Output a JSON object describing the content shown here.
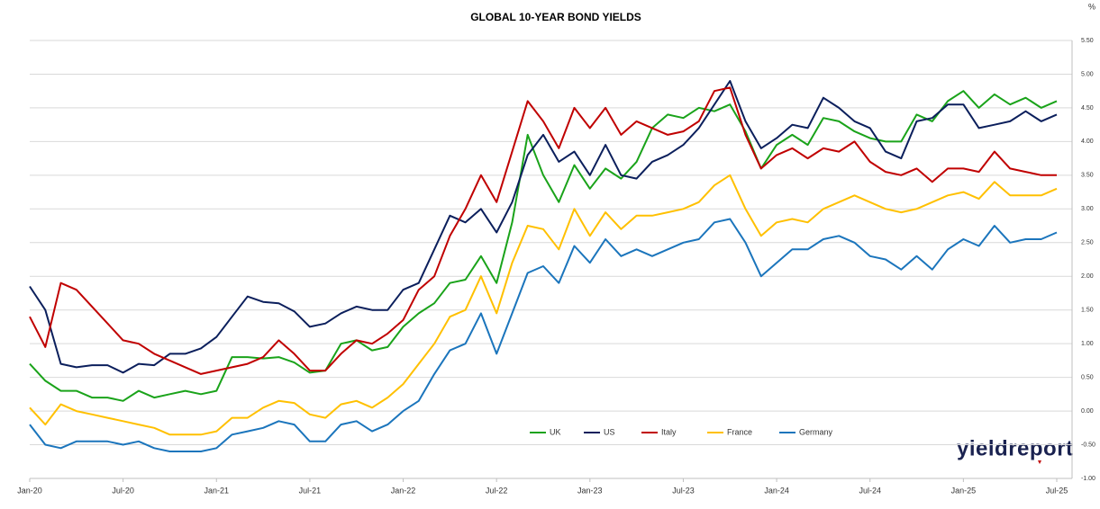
{
  "chart_data": {
    "type": "line",
    "title": "GLOBAL 10-YEAR BOND YIELDS",
    "y_unit": "%",
    "logo": "yieldreport",
    "categories": [
      "Jan-20",
      null,
      null,
      null,
      null,
      null,
      "Jul-20",
      null,
      null,
      null,
      null,
      null,
      "Jan-21",
      null,
      null,
      null,
      null,
      null,
      "Jul-21",
      null,
      null,
      null,
      null,
      null,
      "Jan-22",
      null,
      null,
      null,
      null,
      null,
      "Jul-22",
      null,
      null,
      null,
      null,
      null,
      "Jan-23",
      null,
      null,
      null,
      null,
      null,
      "Jul-23",
      null,
      null,
      null,
      null,
      null,
      "Jan-24",
      null,
      null,
      null,
      null,
      null,
      "Jul-24",
      null,
      null,
      null,
      null,
      null,
      "Jan-25",
      null,
      null,
      null,
      null,
      null,
      "Jul-25"
    ],
    "series": [
      {
        "name": "UK",
        "color": "#1aa31a",
        "values": [
          0.7,
          0.45,
          0.3,
          0.3,
          0.2,
          0.2,
          0.15,
          0.3,
          0.2,
          0.25,
          0.3,
          0.25,
          0.3,
          0.8,
          0.8,
          0.78,
          0.8,
          0.72,
          0.57,
          0.6,
          1.0,
          1.05,
          0.9,
          0.95,
          1.25,
          1.45,
          1.6,
          1.9,
          1.95,
          2.3,
          1.9,
          2.8,
          4.1,
          3.5,
          3.1,
          3.65,
          3.3,
          3.6,
          3.45,
          3.7,
          4.2,
          4.4,
          4.35,
          4.5,
          4.45,
          4.55,
          4.15,
          3.6,
          3.95,
          4.1,
          3.95,
          4.35,
          4.3,
          4.15,
          4.05,
          4.0,
          4.0,
          4.4,
          4.3,
          4.6,
          4.75,
          4.5,
          4.7,
          4.55,
          4.65,
          4.5,
          4.6
        ]
      },
      {
        "name": "US",
        "color": "#0b1f5c",
        "values": [
          1.85,
          1.5,
          0.7,
          0.65,
          0.68,
          0.68,
          0.57,
          0.7,
          0.68,
          0.85,
          0.85,
          0.93,
          1.1,
          1.4,
          1.7,
          1.62,
          1.6,
          1.48,
          1.25,
          1.3,
          1.45,
          1.55,
          1.5,
          1.5,
          1.8,
          1.9,
          2.4,
          2.9,
          2.8,
          3.0,
          2.65,
          3.1,
          3.8,
          4.1,
          3.7,
          3.85,
          3.5,
          3.95,
          3.5,
          3.45,
          3.7,
          3.8,
          3.95,
          4.2,
          4.55,
          4.9,
          4.3,
          3.9,
          4.05,
          4.25,
          4.2,
          4.65,
          4.5,
          4.3,
          4.2,
          3.85,
          3.75,
          4.3,
          4.35,
          4.55,
          4.55,
          4.2,
          4.25,
          4.3,
          4.45,
          4.3,
          4.4
        ]
      },
      {
        "name": "Italy",
        "color": "#c00000",
        "values": [
          1.4,
          0.95,
          1.9,
          1.8,
          1.55,
          1.3,
          1.05,
          1.0,
          0.85,
          0.75,
          0.65,
          0.55,
          0.6,
          0.65,
          0.7,
          0.8,
          1.05,
          0.85,
          0.6,
          0.6,
          0.85,
          1.05,
          1.0,
          1.15,
          1.35,
          1.8,
          2.0,
          2.6,
          3.0,
          3.5,
          3.1,
          3.85,
          4.6,
          4.3,
          3.9,
          4.5,
          4.2,
          4.5,
          4.1,
          4.3,
          4.2,
          4.1,
          4.15,
          4.3,
          4.75,
          4.8,
          4.1,
          3.6,
          3.8,
          3.9,
          3.75,
          3.9,
          3.85,
          4.0,
          3.7,
          3.55,
          3.5,
          3.6,
          3.4,
          3.6,
          3.6,
          3.55,
          3.85,
          3.6,
          3.55,
          3.5,
          3.5
        ]
      },
      {
        "name": "France",
        "color": "#ffc000",
        "values": [
          0.05,
          -0.2,
          0.1,
          0.0,
          -0.05,
          -0.1,
          -0.15,
          -0.2,
          -0.25,
          -0.35,
          -0.35,
          -0.35,
          -0.3,
          -0.1,
          -0.1,
          0.05,
          0.15,
          0.12,
          -0.05,
          -0.1,
          0.1,
          0.15,
          0.05,
          0.2,
          0.4,
          0.7,
          1.0,
          1.4,
          1.5,
          2.0,
          1.45,
          2.2,
          2.75,
          2.7,
          2.4,
          3.0,
          2.6,
          2.95,
          2.7,
          2.9,
          2.9,
          2.95,
          3.0,
          3.1,
          3.35,
          3.5,
          3.0,
          2.6,
          2.8,
          2.85,
          2.8,
          3.0,
          3.1,
          3.2,
          3.1,
          3.0,
          2.95,
          3.0,
          3.1,
          3.2,
          3.25,
          3.15,
          3.4,
          3.2,
          3.2,
          3.2,
          3.3
        ]
      },
      {
        "name": "Germany",
        "color": "#1b75bc",
        "values": [
          -0.2,
          -0.5,
          -0.55,
          -0.45,
          -0.45,
          -0.45,
          -0.5,
          -0.45,
          -0.55,
          -0.6,
          -0.6,
          -0.6,
          -0.55,
          -0.35,
          -0.3,
          -0.25,
          -0.15,
          -0.2,
          -0.45,
          -0.45,
          -0.2,
          -0.15,
          -0.3,
          -0.2,
          0.0,
          0.15,
          0.55,
          0.9,
          1.0,
          1.45,
          0.85,
          1.45,
          2.05,
          2.15,
          1.9,
          2.45,
          2.2,
          2.55,
          2.3,
          2.4,
          2.3,
          2.4,
          2.5,
          2.55,
          2.8,
          2.85,
          2.5,
          2.0,
          2.2,
          2.4,
          2.4,
          2.55,
          2.6,
          2.5,
          2.3,
          2.25,
          2.1,
          2.3,
          2.1,
          2.4,
          2.55,
          2.45,
          2.75,
          2.5,
          2.55,
          2.55,
          2.65
        ]
      }
    ],
    "ylim": [
      -1,
      5.5
    ],
    "yticks": [
      {
        "value": -1,
        "label": "-1.00"
      },
      {
        "value": -0.5,
        "label": "-0.50"
      },
      {
        "value": 0,
        "label": "0.00"
      },
      {
        "value": 0.5,
        "label": "0.50"
      },
      {
        "value": 1,
        "label": "1.00"
      },
      {
        "value": 1.5,
        "label": "1.50"
      },
      {
        "value": 2,
        "label": "2.00"
      },
      {
        "value": 2.5,
        "label": "2.50"
      },
      {
        "value": 3,
        "label": "3.00"
      },
      {
        "value": 3.5,
        "label": "3.50"
      },
      {
        "value": 4,
        "label": "4.00"
      },
      {
        "value": 4.5,
        "label": "4.50"
      },
      {
        "value": 5,
        "label": "5.00"
      },
      {
        "value": 5.5,
        "label": "5.50"
      }
    ],
    "grid": true,
    "legend": "bottom"
  }
}
